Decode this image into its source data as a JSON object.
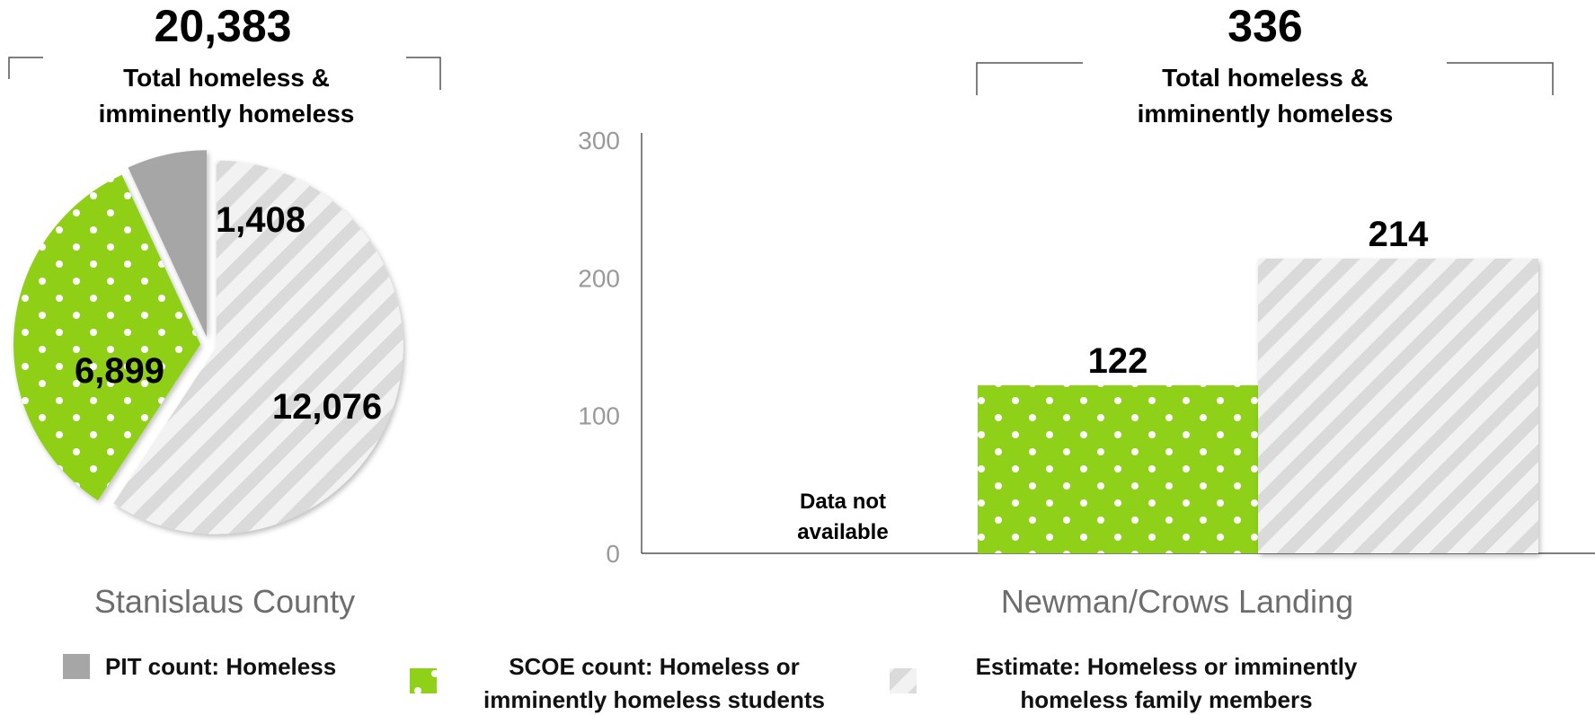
{
  "chart_data": [
    {
      "type": "pie",
      "name": "Stanislaus County",
      "total": "20,383",
      "total_label_line1": "Total homeless &",
      "total_label_line2": "imminently homeless",
      "slices": [
        {
          "key": "estimate",
          "value": 12076,
          "label": "12,076"
        },
        {
          "key": "scoe",
          "value": 6899,
          "label": "6,899"
        },
        {
          "key": "pit",
          "value": 1408,
          "label": "1,408"
        }
      ]
    },
    {
      "type": "bar",
      "name": "Newman/Crows Landing",
      "total": "336",
      "total_label_line1": "Total homeless &",
      "total_label_line2": "imminently homeless",
      "ylim": [
        0,
        300
      ],
      "yticks": [
        "0",
        "100",
        "200",
        "300"
      ],
      "not_available_line1": "Data not",
      "not_available_line2": "available",
      "bars": [
        {
          "key": "scoe",
          "value": 122,
          "label": "122"
        },
        {
          "key": "estimate",
          "value": 214,
          "label": "214"
        }
      ]
    }
  ],
  "legend": {
    "pit": {
      "line1": "PIT count: Homeless"
    },
    "scoe": {
      "line1": "SCOE count: Homeless or",
      "line2": "imminently homeless students"
    },
    "estimate": {
      "line1": "Estimate: Homeless or imminently",
      "line2": "homeless family members"
    }
  },
  "colors": {
    "pit": "#a6a6a6",
    "scoe": "#8fd018",
    "estimate_bg": "#f2f2f2",
    "estimate_stripe": "#dadada",
    "dot": "#ffffff",
    "axis": "#333333"
  }
}
